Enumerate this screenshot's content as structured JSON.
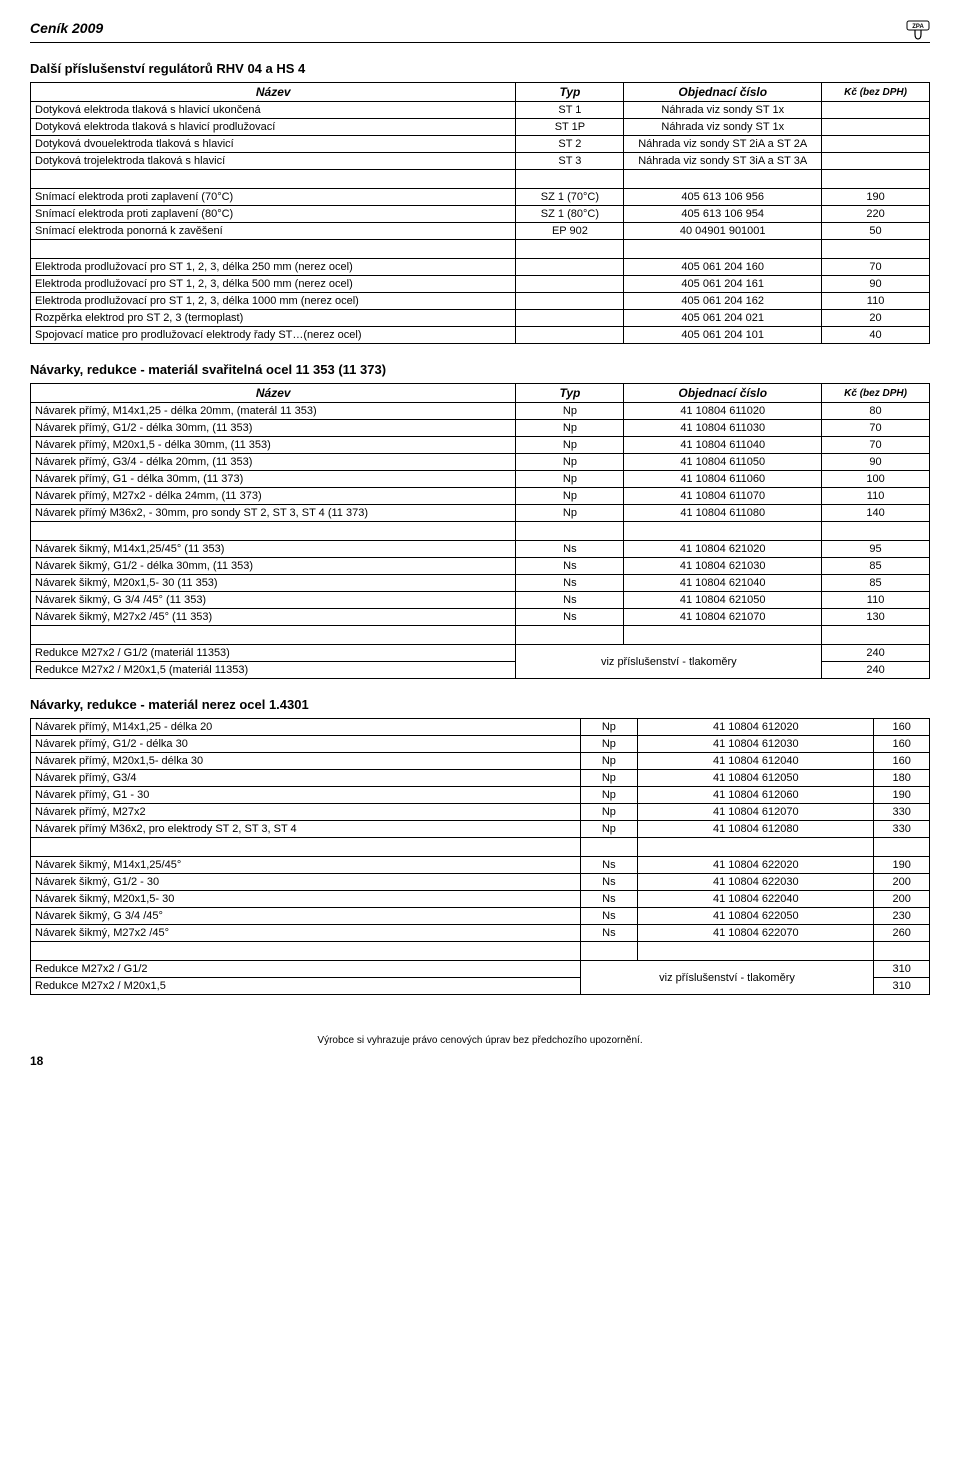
{
  "header": {
    "title": "Ceník 2009",
    "logo_text": "ZPA"
  },
  "section1": {
    "title": "Další příslušenství regulátorů RHV 04 a HS 4",
    "columns": [
      "Název",
      "Typ",
      "Objednací číslo",
      "Kč (bez DPH)"
    ],
    "rows": [
      [
        "Dotyková elektroda tlaková s hlavicí ukončená",
        "ST 1",
        "Náhrada viz sondy ST 1x",
        ""
      ],
      [
        "Dotyková elektroda tlaková s hlavicí prodlužovací",
        "ST 1P",
        "Náhrada viz sondy ST 1x",
        ""
      ],
      [
        "Dotyková dvouelektroda tlaková s hlavicí",
        "ST 2",
        "Náhrada viz sondy ST 2iA a ST 2A",
        ""
      ],
      [
        "Dotyková trojelektroda tlaková s hlavicí",
        "ST 3",
        "Náhrada viz sondy ST 3iA a ST 3A",
        ""
      ],
      [
        "blank"
      ],
      [
        "Snímací elektroda proti zaplavení (70°C)",
        "SZ 1 (70°C)",
        "405 613 106 956",
        "190"
      ],
      [
        "Snímací elektroda proti zaplavení (80°C)",
        "SZ 1 (80°C)",
        "405 613 106 954",
        "220"
      ],
      [
        "Snímací elektroda ponorná k zavěšení",
        "EP 902",
        "40 04901 901001",
        "50"
      ],
      [
        "blank"
      ],
      [
        "Elektroda prodlužovací pro ST 1, 2, 3, délka 250 mm (nerez ocel)",
        "",
        "405 061 204 160",
        "70"
      ],
      [
        "Elektroda prodlužovací pro ST 1, 2, 3, délka 500 mm (nerez ocel)",
        "",
        "405 061 204 161",
        "90"
      ],
      [
        "Elektroda prodlužovací pro ST 1, 2, 3, délka 1000 mm (nerez ocel)",
        "",
        "405 061 204 162",
        "110"
      ],
      [
        "Rozpěrka elektrod pro ST 2, 3 (termoplast)",
        "",
        "405 061 204 021",
        "20"
      ],
      [
        "Spojovací matice pro prodlužovací elektrody řady ST…(nerez ocel)",
        "",
        "405 061 204 101",
        "40"
      ]
    ]
  },
  "section2": {
    "title": "Návarky, redukce - materiál svařitelná ocel 11 353 (11 373)",
    "columns": [
      "Název",
      "Typ",
      "Objednací číslo",
      "Kč (bez DPH)"
    ],
    "rows": [
      [
        "Návarek přímý, M14x1,25 - délka 20mm, (materál 11 353)",
        "Np",
        "41 10804 611020",
        "80"
      ],
      [
        "Návarek přímý, G1/2 - délka 30mm, (11 353)",
        "Np",
        "41 10804 611030",
        "70"
      ],
      [
        "Návarek přímý, M20x1,5 - délka 30mm, (11 353)",
        "Np",
        "41 10804 611040",
        "70"
      ],
      [
        "Návarek přímý, G3/4 - délka 20mm,  (11 353)",
        "Np",
        "41 10804 611050",
        "90"
      ],
      [
        "Návarek přímý, G1 - délka 30mm, (11 373)",
        "Np",
        "41 10804 611060",
        "100"
      ],
      [
        "Návarek přímý, M27x2 - délka 24mm,  (11 373)",
        "Np",
        "41 10804 611070",
        "110"
      ],
      [
        "Návarek přímý M36x2, - 30mm, pro sondy ST 2, ST 3, ST 4 (11 373)",
        "Np",
        "41 10804 611080",
        "140"
      ],
      [
        "blank"
      ],
      [
        "Návarek šikmý, M14x1,25/45° (11 353)",
        "Ns",
        "41 10804 621020",
        "95"
      ],
      [
        "Návarek šikmý, G1/2 - délka 30mm, (11 353)",
        "Ns",
        "41 10804 621030",
        "85"
      ],
      [
        "Návarek šikmý, M20x1,5- 30 (11 353)",
        "Ns",
        "41 10804 621040",
        "85"
      ],
      [
        "Návarek šikmý, G 3/4 /45° (11 353)",
        "Ns",
        "41 10804 621050",
        "110"
      ],
      [
        "Návarek šikmý, M27x2 /45° (11 353)",
        "Ns",
        "41 10804 621070",
        "130"
      ],
      [
        "blank"
      ]
    ],
    "merged": {
      "rows": [
        [
          "Redukce M27x2 / G1/2 (materiál 11353)",
          "240"
        ],
        [
          "Redukce M27x2 / M20x1,5 (materiál 11353)",
          "240"
        ]
      ],
      "note": "viz příslušenství - tlakoměry"
    }
  },
  "section3": {
    "title": "Návarky, redukce - materiál nerez ocel 1.4301",
    "rows": [
      [
        "Návarek přímý, M14x1,25 - délka 20",
        "Np",
        "41 10804 612020",
        "160"
      ],
      [
        "Návarek přímý, G1/2 - délka 30",
        "Np",
        "41 10804 612030",
        "160"
      ],
      [
        "Návarek přímý, M20x1,5- délka 30",
        "Np",
        "41 10804 612040",
        "160"
      ],
      [
        "Návarek přímý, G3/4",
        "Np",
        "41 10804 612050",
        "180"
      ],
      [
        "Návarek přímý, G1 - 30",
        "Np",
        "41 10804 612060",
        "190"
      ],
      [
        "Návarek přímý, M27x2",
        "Np",
        "41 10804 612070",
        "330"
      ],
      [
        "Návarek přímý M36x2, pro elektrody ST 2, ST 3, ST 4",
        "Np",
        "41 10804 612080",
        "330"
      ],
      [
        "blank"
      ],
      [
        "Návarek šikmý, M14x1,25/45°",
        "Ns",
        "41 10804 622020",
        "190"
      ],
      [
        "Návarek šikmý, G1/2 - 30",
        "Ns",
        "41 10804 622030",
        "200"
      ],
      [
        "Návarek šikmý, M20x1,5- 30",
        "Ns",
        "41 10804 622040",
        "200"
      ],
      [
        "Návarek šikmý, G 3/4 /45°",
        "Ns",
        "41 10804 622050",
        "230"
      ],
      [
        "Návarek šikmý, M27x2 /45°",
        "Ns",
        "41 10804 622070",
        "260"
      ],
      [
        "blank"
      ]
    ],
    "merged": {
      "rows": [
        [
          "Redukce M27x2 / G1/2",
          "310"
        ],
        [
          "Redukce M27x2 / M20x1,5",
          "310"
        ]
      ],
      "note": "viz příslušenství - tlakoměry"
    }
  },
  "footnote": "Výrobce si vyhrazuje právo cenových úprav bez předchozího upozornění.",
  "pagenum": "18"
}
